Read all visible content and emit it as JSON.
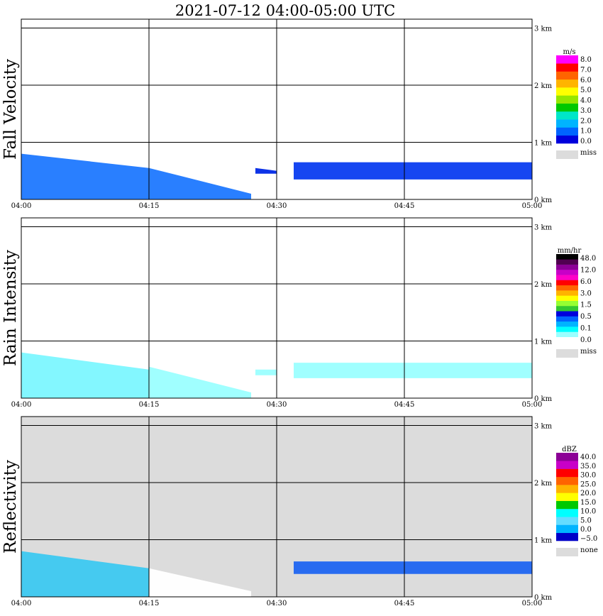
{
  "title": "2021-07-12   04:00-05:00 UTC",
  "x_tick_labels": [
    "04:00",
    "04:15",
    "04:30",
    "04:45",
    "05:00"
  ],
  "y_tick_labels": [
    "0 km",
    "1 km",
    "2 km",
    "3 km"
  ],
  "chart_data": [
    {
      "type": "heatmap",
      "ylabel": "Fall Velocity",
      "units": "m/s",
      "background": "#ffffff",
      "colorbar": {
        "colors": [
          "#0000dc",
          "#0064ff",
          "#00b4ff",
          "#00e6c8",
          "#00c800",
          "#96e600",
          "#ffff00",
          "#ffb400",
          "#ff6400",
          "#ff0000",
          "#ff00ff"
        ],
        "labels": [
          "8.0",
          "7.0",
          "6.0",
          "5.0",
          "4.0",
          "3.0",
          "2.0",
          "1.0",
          "0.0"
        ],
        "missing_label": "miss"
      },
      "xlim_minutes": [
        0,
        60
      ],
      "ylim_km": [
        0,
        3.0
      ],
      "echo_regions": [
        {
          "t_start": 0,
          "t_end": 15,
          "top_km_start": 0.8,
          "top_km_end": 0.55,
          "base_km": 0,
          "color": "#1e78ff"
        },
        {
          "t_start": 15,
          "t_end": 27,
          "top_km_start": 0.55,
          "top_km_end": 0.1,
          "base_km": 0,
          "color": "#1e78ff"
        },
        {
          "t_start": 27.5,
          "t_end": 30,
          "top_km_start": 0.55,
          "top_km_end": 0.5,
          "base_km": 0.45,
          "color": "#0028e6"
        },
        {
          "t_start": 32,
          "t_end": 60,
          "top_km_start": 0.65,
          "top_km_end": 0.65,
          "base_km": 0.35,
          "color": "#0a3cf0"
        }
      ]
    },
    {
      "type": "heatmap",
      "ylabel": "Rain Intensity",
      "units": "mm/hr",
      "background": "#ffffff",
      "colorbar": {
        "colors": [
          "#ffffff",
          "#9bffff",
          "#00ffff",
          "#00b4ff",
          "#0064ff",
          "#0000dc",
          "#32c832",
          "#96ff32",
          "#ffff00",
          "#ffb400",
          "#ff6400",
          "#ff0000",
          "#ff00c8",
          "#c800c8",
          "#8c0096",
          "#500050",
          "#000000"
        ],
        "labels": [
          "48.0",
          "12.0",
          "6.0",
          "3.0",
          "1.5",
          "0.5",
          "0.1",
          "0.0"
        ],
        "missing_label": "miss"
      },
      "xlim_minutes": [
        0,
        60
      ],
      "ylim_km": [
        0,
        3.0
      ],
      "echo_regions": [
        {
          "t_start": 0,
          "t_end": 15,
          "top_km_start": 0.8,
          "top_km_end": 0.5,
          "base_km": 0,
          "color": "#7cf7ff"
        },
        {
          "t_start": 15,
          "t_end": 27,
          "top_km_start": 0.55,
          "top_km_end": 0.1,
          "base_km": 0,
          "color": "#9bffff"
        },
        {
          "t_start": 27.5,
          "t_end": 30,
          "top_km_start": 0.5,
          "top_km_end": 0.5,
          "base_km": 0.4,
          "color": "#9bffff"
        },
        {
          "t_start": 32,
          "t_end": 60,
          "top_km_start": 0.62,
          "top_km_end": 0.62,
          "base_km": 0.35,
          "color": "#9bffff"
        }
      ]
    },
    {
      "type": "heatmap",
      "ylabel": "Reflectivity",
      "units": "dBZ",
      "background": "#dcdcdc",
      "colorbar": {
        "colors": [
          "#0000c8",
          "#00b4ff",
          "#64dcff",
          "#00ffff",
          "#00c800",
          "#ffff00",
          "#ffb400",
          "#ff6400",
          "#ff0000",
          "#c800c8",
          "#8c0096"
        ],
        "labels": [
          "40.0",
          "35.0",
          "30.0",
          "25.0",
          "20.0",
          "15.0",
          "10.0",
          "5.0",
          "0.0",
          "−5.0"
        ],
        "missing_label": "none"
      },
      "xlim_minutes": [
        0,
        60
      ],
      "ylim_km": [
        0,
        3.0
      ],
      "echo_regions": [
        {
          "t_start": 0,
          "t_end": 15,
          "top_km_start": 0.8,
          "top_km_end": 0.5,
          "base_km": 0,
          "color": "#3cc8f0"
        },
        {
          "t_start": 15,
          "t_end": 27,
          "top_km_start": 0.5,
          "top_km_end": 0.1,
          "base_km": 0,
          "color": "#ffffff"
        },
        {
          "t_start": 32,
          "t_end": 60,
          "top_km_start": 0.62,
          "top_km_end": 0.62,
          "base_km": 0.4,
          "color": "#1e64f0"
        }
      ]
    }
  ]
}
